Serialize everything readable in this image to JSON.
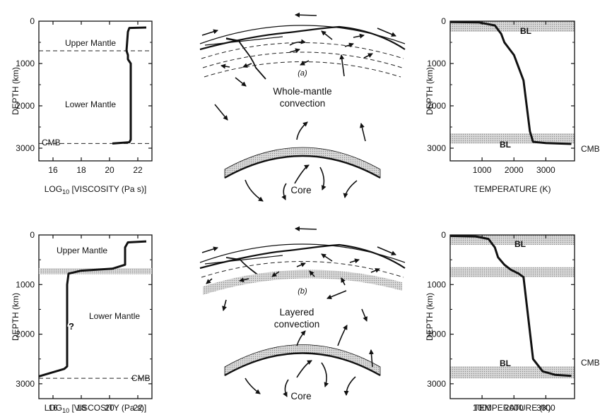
{
  "chart_data": [
    {
      "type": "line",
      "panel": "viscosity-a",
      "xlabel_main": "LOG",
      "xlabel_sub": "10",
      "xlabel_rest": " [VISCOSITY (Pa s)]",
      "ylabel": "DEPTH (km)",
      "xlim": [
        15,
        23
      ],
      "ylim": [
        0,
        3300
      ],
      "xticks": [
        "16",
        "18",
        "20",
        "22"
      ],
      "yticks": [
        "0",
        "1000",
        "2000",
        "3000"
      ],
      "labels": [
        "Upper Mantle",
        "Lower Mantle",
        "CMB"
      ],
      "boundaries_km": [
        700,
        2890
      ],
      "x": [
        22.6,
        21.4,
        21.3,
        21.2,
        21.3,
        21.3,
        21.5,
        21.5,
        21.4,
        20.2
      ],
      "y": [
        150,
        160,
        250,
        700,
        800,
        900,
        1000,
        2800,
        2860,
        2890
      ]
    },
    {
      "type": "line",
      "panel": "temperature-a",
      "xlabel": "TEMPERATURE (K)",
      "ylabel": "DEPTH (km)",
      "xlim": [
        0,
        3900
      ],
      "ylim": [
        0,
        3300
      ],
      "xticks": [
        "1000",
        "2000",
        "3000"
      ],
      "yticks": [
        "0",
        "1000",
        "2000",
        "3000"
      ],
      "labels": [
        "BL",
        "BL",
        "CMB"
      ],
      "bl_bands_km": [
        [
          0,
          250
        ],
        [
          2650,
          2890
        ]
      ],
      "x": [
        0,
        900,
        1400,
        1600,
        1700,
        1800,
        2000,
        2300,
        2500,
        2600,
        3000,
        3800
      ],
      "y": [
        20,
        30,
        100,
        300,
        500,
        600,
        800,
        1400,
        2600,
        2850,
        2880,
        2900
      ]
    },
    {
      "type": "line",
      "panel": "viscosity-b",
      "xlabel_main": "LOG",
      "xlabel_sub": "10",
      "xlabel_rest": " [VISCOSITY (Pa s)]",
      "ylabel": "DEPTH (km)",
      "xlim": [
        15,
        23
      ],
      "ylim": [
        0,
        3300
      ],
      "xticks": [
        "16",
        "18",
        "20",
        "22"
      ],
      "yticks": [
        "0",
        "1000",
        "2000",
        "3000"
      ],
      "labels": [
        "Upper Mantle",
        "?",
        "Lower Mantle",
        "CMB"
      ],
      "boundaries_km": [
        670,
        2890
      ],
      "x": [
        22.6,
        21.3,
        21.1,
        21.1,
        20.2,
        18.0,
        17.1,
        17.0,
        17.0,
        16.8,
        15.0
      ],
      "y": [
        130,
        150,
        250,
        600,
        680,
        720,
        780,
        1000,
        2650,
        2700,
        2850
      ]
    },
    {
      "type": "line",
      "panel": "temperature-b",
      "xlabel": "TEMPERATURE (K)",
      "ylabel": "DEPTH (km)",
      "xlim": [
        0,
        3900
      ],
      "ylim": [
        0,
        3300
      ],
      "xticks": [
        "1000",
        "2000",
        "3000"
      ],
      "yticks": [
        "0",
        "1000",
        "2000",
        "3000"
      ],
      "labels": [
        "BL",
        "BL",
        "CMB"
      ],
      "bl_bands_km": [
        [
          0,
          200
        ],
        [
          650,
          850
        ],
        [
          2650,
          2890
        ]
      ],
      "x": [
        0,
        800,
        1200,
        1400,
        1500,
        1700,
        1900,
        2150,
        2300,
        2400,
        2600,
        2900,
        3300,
        3800
      ],
      "y": [
        20,
        30,
        80,
        250,
        450,
        600,
        700,
        780,
        850,
        1400,
        2500,
        2750,
        2820,
        2840
      ]
    }
  ],
  "diagrams": {
    "a": {
      "caption": "(a)",
      "title_line1": "Whole-mantle",
      "title_line2": "convection",
      "core_label": "Core"
    },
    "b": {
      "caption": "(b)",
      "title_line1": "Layered",
      "title_line2": "convection",
      "core_label": "Core"
    }
  }
}
